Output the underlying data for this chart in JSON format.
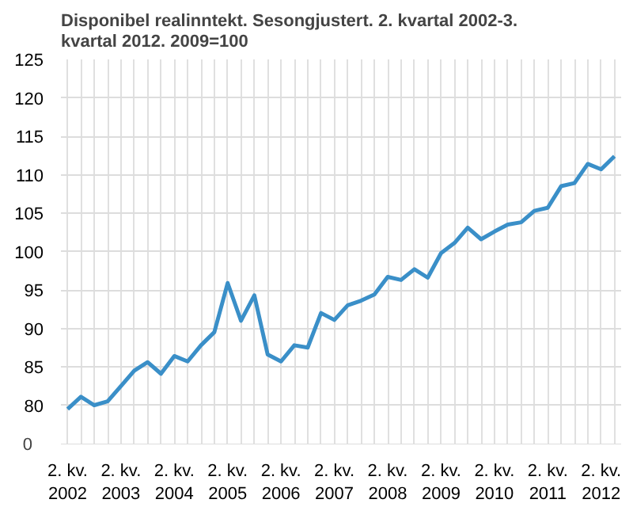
{
  "chart_data": {
    "type": "line",
    "title": "Disponibel realinntekt. Sesongjustert. 2. kvartal 2002-3. kvartal 2012. 2009=100",
    "categories": [
      "2. kv.\n2002",
      null,
      null,
      null,
      "2. kv.\n2003",
      null,
      null,
      null,
      "2. kv.\n2004",
      null,
      null,
      null,
      "2. kv.\n2005",
      null,
      null,
      null,
      "2. kv.\n2006",
      null,
      null,
      null,
      "2. kv.\n2007",
      null,
      null,
      null,
      "2. kv.\n2008",
      null,
      null,
      null,
      "2. kv.\n2009",
      null,
      null,
      null,
      "2. kv.\n2010",
      null,
      null,
      null,
      "2. kv.\n2011",
      null,
      null,
      null,
      "2. kv.\n2012",
      null
    ],
    "series": [
      {
        "color": "#3a8fc8",
        "values": [
          79.5,
          81.1,
          80.0,
          80.5,
          82.5,
          84.5,
          85.6,
          84.1,
          86.4,
          85.7,
          87.8,
          89.5,
          95.9,
          91.0,
          94.3,
          86.6,
          85.7,
          87.8,
          87.5,
          92.0,
          91.1,
          93.0,
          93.6,
          94.4,
          96.7,
          96.3,
          97.7,
          96.6,
          99.8,
          101.1,
          103.1,
          101.6,
          102.6,
          103.5,
          103.8,
          105.3,
          105.7,
          108.5,
          108.9,
          111.4,
          110.7,
          112.4
        ]
      }
    ],
    "ylim": [
      74.9,
      125
    ],
    "annotations": [
      "0"
    ],
    "yticks": [
      {
        "value": 75,
        "label": null
      },
      80,
      85,
      90,
      95,
      100,
      105,
      110,
      115,
      120,
      125
    ],
    "grid": true,
    "line_style": "solid",
    "marker": "none"
  }
}
